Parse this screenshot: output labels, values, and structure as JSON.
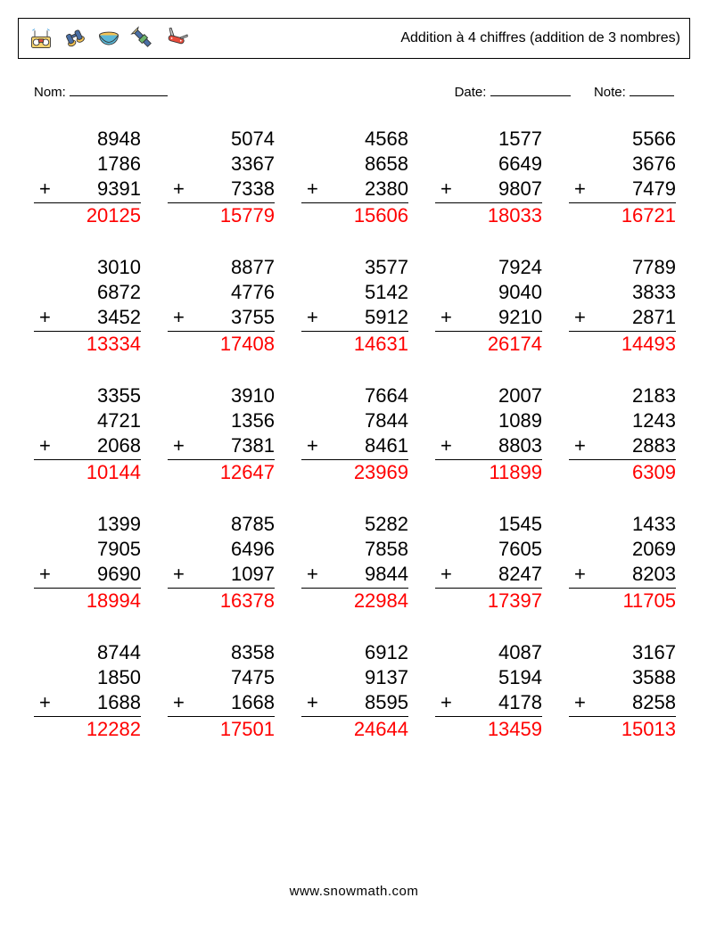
{
  "title": "Addition à 4 chiffres (addition de 3 nombres)",
  "labels": {
    "name": "Nom:",
    "date": "Date:",
    "grade": "Note:"
  },
  "blanks": {
    "name_width": 110,
    "date_width": 90,
    "grade_width": 50,
    "gap_right1": 12,
    "gap_right2": 12
  },
  "style": {
    "answer_color": "#ff0000",
    "text_color": "#000000",
    "font_size_problem": 22,
    "columns": 5,
    "rows": 5
  },
  "icons": [
    {
      "name": "boombox-icon"
    },
    {
      "name": "binoculars-icon"
    },
    {
      "name": "bowl-icon"
    },
    {
      "name": "flashlight-icon"
    },
    {
      "name": "swiss-knife-icon"
    }
  ],
  "problems": [
    {
      "a": 8948,
      "b": 1786,
      "c": 9391,
      "ans": 20125
    },
    {
      "a": 5074,
      "b": 3367,
      "c": 7338,
      "ans": 15779
    },
    {
      "a": 4568,
      "b": 8658,
      "c": 2380,
      "ans": 15606
    },
    {
      "a": 1577,
      "b": 6649,
      "c": 9807,
      "ans": 18033
    },
    {
      "a": 5566,
      "b": 3676,
      "c": 7479,
      "ans": 16721
    },
    {
      "a": 3010,
      "b": 6872,
      "c": 3452,
      "ans": 13334
    },
    {
      "a": 8877,
      "b": 4776,
      "c": 3755,
      "ans": 17408
    },
    {
      "a": 3577,
      "b": 5142,
      "c": 5912,
      "ans": 14631
    },
    {
      "a": 7924,
      "b": 9040,
      "c": 9210,
      "ans": 26174
    },
    {
      "a": 7789,
      "b": 3833,
      "c": 2871,
      "ans": 14493
    },
    {
      "a": 3355,
      "b": 4721,
      "c": 2068,
      "ans": 10144
    },
    {
      "a": 3910,
      "b": 1356,
      "c": 7381,
      "ans": 12647
    },
    {
      "a": 7664,
      "b": 7844,
      "c": 8461,
      "ans": 23969
    },
    {
      "a": 2007,
      "b": 1089,
      "c": 8803,
      "ans": 11899
    },
    {
      "a": 2183,
      "b": 1243,
      "c": 2883,
      "ans": 6309
    },
    {
      "a": 1399,
      "b": 7905,
      "c": 9690,
      "ans": 18994
    },
    {
      "a": 8785,
      "b": 6496,
      "c": 1097,
      "ans": 16378
    },
    {
      "a": 5282,
      "b": 7858,
      "c": 9844,
      "ans": 22984
    },
    {
      "a": 1545,
      "b": 7605,
      "c": 8247,
      "ans": 17397
    },
    {
      "a": 1433,
      "b": 2069,
      "c": 8203,
      "ans": 11705
    },
    {
      "a": 8744,
      "b": 1850,
      "c": 1688,
      "ans": 12282
    },
    {
      "a": 8358,
      "b": 7475,
      "c": 1668,
      "ans": 17501
    },
    {
      "a": 6912,
      "b": 9137,
      "c": 8595,
      "ans": 24644
    },
    {
      "a": 4087,
      "b": 5194,
      "c": 4178,
      "ans": 13459
    },
    {
      "a": 3167,
      "b": 3588,
      "c": 8258,
      "ans": 15013
    }
  ],
  "footer": "www.snowmath.com"
}
